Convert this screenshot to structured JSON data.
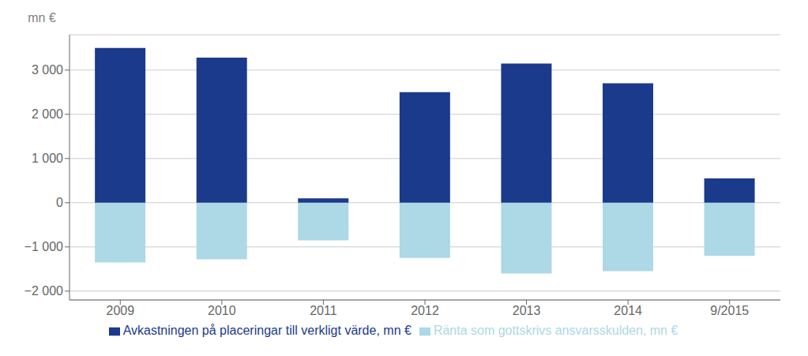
{
  "chart_data": {
    "type": "bar",
    "ylabel": "mn €",
    "categories": [
      "2009",
      "2010",
      "2011",
      "2012",
      "2013",
      "2014",
      "9/2015"
    ],
    "series": [
      {
        "name": "Ränta som gottskrivs ansvarsskulden, mn €",
        "color": "#ADD8E6",
        "values": [
          -1350,
          -1280,
          -850,
          -1250,
          -1600,
          -1550,
          -1200
        ]
      },
      {
        "name": "Avkastningen på placeringar till verkligt värde, mn €",
        "color": "#1B3A8C",
        "values": [
          3500,
          3280,
          100,
          2500,
          3150,
          2700,
          550
        ]
      }
    ],
    "ylim": [
      -2200,
      3800
    ],
    "yticks": [
      {
        "value": -2000,
        "label": "−2 000"
      },
      {
        "value": -1000,
        "label": "−1 000"
      },
      0,
      {
        "value": 1000,
        "label": "1 000"
      },
      {
        "value": 2000,
        "label": "2 000"
      },
      {
        "value": 3000,
        "label": "3 000"
      }
    ],
    "grid": true,
    "stacked": true,
    "legend": "bottom"
  }
}
